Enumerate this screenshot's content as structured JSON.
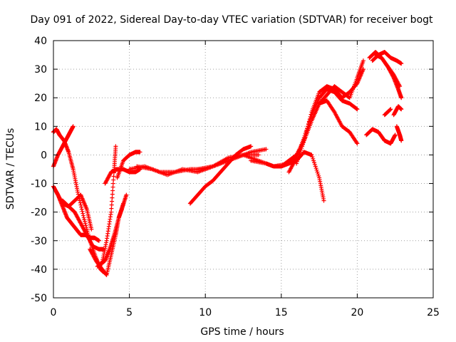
{
  "chart_data": {
    "type": "scatter",
    "title": "Day 091 of 2022, Sidereal Day-to-day VTEC variation (SDTVAR) for receiver bogt",
    "xlabel": "GPS time / hours",
    "ylabel": "SDTVAR / TECUs",
    "xlim": [
      0,
      25
    ],
    "ylim": [
      -50,
      40
    ],
    "xticks": [
      0,
      5,
      10,
      15,
      20,
      25
    ],
    "yticks": [
      -50,
      -40,
      -30,
      -20,
      -10,
      0,
      10,
      20,
      30,
      40
    ],
    "grid": true,
    "legend": "none",
    "marker": "+",
    "color": "#ff0000",
    "series": [
      {
        "x": [
          0.0,
          0.2,
          0.4,
          0.7,
          1.0,
          1.3,
          1.6,
          2.0,
          2.4,
          2.8,
          3.1,
          3.3
        ],
        "y": [
          8,
          9,
          7,
          5,
          1,
          -5,
          -13,
          -22,
          -30,
          -36,
          -40,
          -41
        ]
      },
      {
        "x": [
          0.0,
          0.3,
          0.6,
          0.9,
          1.1,
          1.3
        ],
        "y": [
          -4,
          0,
          3,
          6,
          8,
          10
        ]
      },
      {
        "x": [
          0.0,
          0.3,
          0.6,
          0.9,
          1.2,
          1.5,
          1.8,
          2.1,
          2.4,
          2.7,
          3.0
        ],
        "y": [
          -11,
          -14,
          -18,
          -22,
          -24,
          -26,
          -28,
          -28,
          -29,
          -29,
          -30
        ]
      },
      {
        "x": [
          0.2,
          0.6,
          1.0,
          1.4,
          1.8,
          2.2,
          2.5
        ],
        "y": [
          -13,
          -17,
          -18,
          -16,
          -14,
          -19,
          -26
        ]
      },
      {
        "x": [
          0.6,
          1.0,
          1.4,
          1.8,
          2.2,
          2.6,
          3.0,
          3.3
        ],
        "y": [
          -16,
          -18,
          -20,
          -24,
          -28,
          -32,
          -33,
          -33
        ]
      },
      {
        "x": [
          2.4,
          2.8,
          3.2,
          3.5,
          3.8,
          4.1,
          4.3,
          4.5,
          4.8
        ],
        "y": [
          -33,
          -37,
          -40,
          -42,
          -35,
          -28,
          -22,
          -19,
          -14
        ]
      },
      {
        "x": [
          2.9,
          3.2,
          3.5,
          3.8,
          4.0,
          4.1
        ],
        "y": [
          -39,
          -38,
          -30,
          -20,
          -5,
          3
        ]
      },
      {
        "x": [
          3.1,
          3.4,
          3.7,
          4.0,
          4.3,
          4.6
        ],
        "y": [
          -38,
          -37,
          -33,
          -28,
          -22,
          -17
        ]
      },
      {
        "x": [
          3.4,
          3.8,
          4.2,
          4.6,
          5.0,
          5.4,
          5.7
        ],
        "y": [
          -10,
          -6,
          -5,
          -5,
          -6,
          -6,
          -5
        ]
      },
      {
        "x": [
          4.2,
          4.6,
          5.0,
          5.4,
          5.7
        ],
        "y": [
          -8,
          -2,
          0,
          1,
          1
        ]
      },
      {
        "x": [
          5.0,
          6.0,
          7.0,
          8.0,
          9.0,
          10.0,
          11.0,
          12.0,
          13.0,
          14.0
        ],
        "y": [
          -5,
          -4,
          -6,
          -6,
          -5,
          -5,
          -3,
          -1,
          1,
          2
        ]
      },
      {
        "x": [
          5.5,
          6.5,
          7.5,
          8.5,
          9.5,
          10.5,
          11.5,
          12.5,
          13.5
        ],
        "y": [
          -4,
          -5,
          -7,
          -5,
          -6,
          -4,
          -1,
          0,
          0
        ]
      },
      {
        "x": [
          9.0,
          9.5,
          10.0,
          10.5,
          11.0,
          11.5,
          12.0,
          12.5,
          13.0
        ],
        "y": [
          -17,
          -14,
          -11,
          -9,
          -6,
          -3,
          0,
          2,
          3
        ]
      },
      {
        "x": [
          9.5,
          10.5,
          11.5,
          12.5,
          13.5,
          14.5,
          15.5,
          16.0
        ],
        "y": [
          -5,
          -4,
          -2,
          0,
          -2,
          -4,
          -3,
          -1
        ]
      },
      {
        "x": [
          13.0,
          14.0,
          14.5,
          15.0,
          15.5,
          16.0,
          16.5,
          17.0,
          17.5,
          17.8
        ],
        "y": [
          -2,
          -3,
          -4,
          -4,
          -3,
          -2,
          1,
          0,
          -8,
          -16
        ]
      },
      {
        "x": [
          15.0,
          15.5,
          16.0,
          16.5,
          17.0,
          17.5,
          18.0,
          18.5,
          19.0,
          19.5,
          20.0
        ],
        "y": [
          -4,
          -2,
          0,
          5,
          12,
          18,
          19,
          15,
          10,
          8,
          4
        ]
      },
      {
        "x": [
          15.5,
          16.0,
          16.5,
          17.0,
          17.5,
          18.0,
          18.5,
          19.0,
          19.5,
          20.0
        ],
        "y": [
          -6,
          -1,
          6,
          14,
          20,
          23,
          22,
          19,
          18,
          16
        ]
      },
      {
        "x": [
          16.0,
          16.5,
          17.0,
          17.5,
          18.0,
          18.5,
          19.0,
          19.5,
          20.0,
          20.4
        ],
        "y": [
          -3,
          5,
          15,
          22,
          24,
          23,
          20,
          22,
          25,
          30
        ]
      },
      {
        "x": [
          16.5,
          17.0,
          17.5,
          18.0,
          18.5,
          19.0,
          19.5,
          20.0,
          20.4
        ],
        "y": [
          5,
          12,
          18,
          21,
          24,
          22,
          20,
          27,
          33
        ]
      },
      {
        "x": [
          20.6,
          21.0,
          21.4,
          21.8,
          22.2,
          22.5
        ],
        "y": [
          7,
          9,
          8,
          5,
          4,
          7
        ]
      },
      {
        "x": [
          20.8,
          21.2,
          21.6,
          22.0,
          22.4,
          22.7,
          22.9
        ],
        "y": [
          34,
          36,
          34,
          31,
          27,
          23,
          20
        ]
      },
      {
        "x": [
          21.0,
          21.4,
          21.8,
          22.2,
          22.6,
          22.9
        ],
        "y": [
          33,
          35,
          36,
          34,
          33,
          32
        ]
      },
      {
        "x": [
          21.2,
          21.6,
          22.0,
          22.4,
          22.8
        ],
        "y": [
          35,
          34,
          31,
          28,
          24
        ]
      },
      {
        "x": [
          22.6,
          22.8,
          22.9
        ],
        "y": [
          10,
          7,
          5
        ]
      },
      {
        "x": [
          21.8,
          22.2
        ],
        "y": [
          14,
          16
        ]
      },
      {
        "x": [
          22.4,
          22.7,
          22.9
        ],
        "y": [
          14,
          17,
          16
        ]
      }
    ]
  }
}
